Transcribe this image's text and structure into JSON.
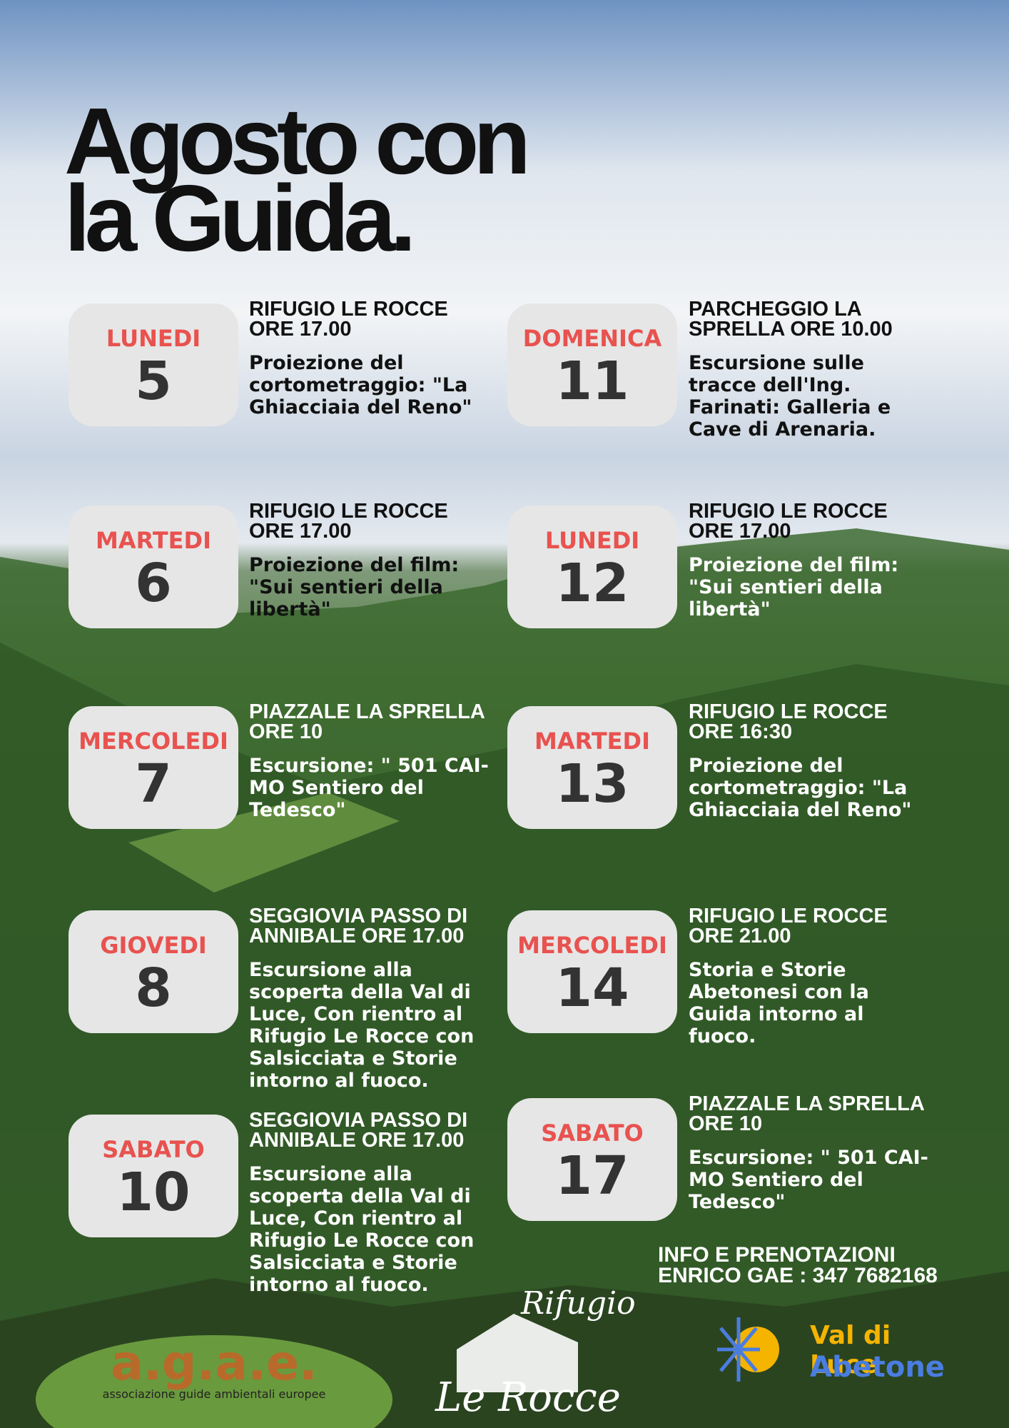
{
  "header": {
    "title_line1": "Agosto con",
    "title_line2": "la Guida."
  },
  "events": [
    {
      "day": "LUNEDI",
      "date": "5",
      "place": "RIFUGIO LE ROCCE ORE 17.00",
      "description": "Proiezione del cortometraggio: \"La Ghiacciaia del Reno\""
    },
    {
      "day": "DOMENICA",
      "date": "11",
      "place": "PARCHEGGIO LA SPRELLA ORE 10.00",
      "description": "Escursione sulle tracce dell'Ing. Farinati: Galleria e Cave di Arenaria."
    },
    {
      "day": "MARTEDI",
      "date": "6",
      "place": "RIFUGIO LE ROCCE ORE 17.00",
      "description": "Proiezione del film: \"Sui sentieri della libertà\""
    },
    {
      "day": "LUNEDI",
      "date": "12",
      "place": "RIFUGIO LE ROCCE ORE 17.00",
      "description": "Proiezione del film: \"Sui sentieri della libertà\""
    },
    {
      "day": "MERCOLEDI",
      "date": "7",
      "place": "PIAZZALE LA SPRELLA ORE 10",
      "description": "Escursione: \" 501 CAI-MO Sentiero del Tedesco\""
    },
    {
      "day": "MARTEDI",
      "date": "13",
      "place": "RIFUGIO LE ROCCE ORE 16:30",
      "description": "Proiezione del cortometraggio: \"La Ghiacciaia del Reno\""
    },
    {
      "day": "GIOVEDI",
      "date": "8",
      "place": "SEGGIOVIA PASSO DI ANNIBALE ORE 17.00",
      "description": "Escursione alla scoperta della Val di Luce, Con rientro al Rifugio Le Rocce  con Salsicciata e Storie intorno al fuoco."
    },
    {
      "day": "MERCOLEDI",
      "date": "14",
      "place": "RIFUGIO LE ROCCE ORE 21.00",
      "description": "Storia e Storie Abetonesi con la Guida intorno al fuoco."
    },
    {
      "day": "SABATO",
      "date": "10",
      "place": "SEGGIOVIA PASSO DI ANNIBALE ORE 17.00",
      "description": "Escursione alla scoperta della Val di Luce, Con rientro al Rifugio Le Rocce  con Salsicciata e Storie intorno al fuoco."
    },
    {
      "day": "SABATO",
      "date": "17",
      "place": "PIAZZALE LA SPRELLA ORE 10",
      "description": "Escursione: \" 501 CAI-MO Sentiero del Tedesco\""
    }
  ],
  "info": {
    "line1": "INFO E PRENOTAZIONI",
    "line2": "ENRICO GAE : 347 7682168"
  },
  "logos": {
    "agae": "a.g.a.e.",
    "agae_sub": "associazione guide ambientali europee",
    "rifugio": "Rifugio",
    "rocce": "Le Rocce",
    "valdiluce": "Val di Luce",
    "abetone": "Abetone"
  }
}
